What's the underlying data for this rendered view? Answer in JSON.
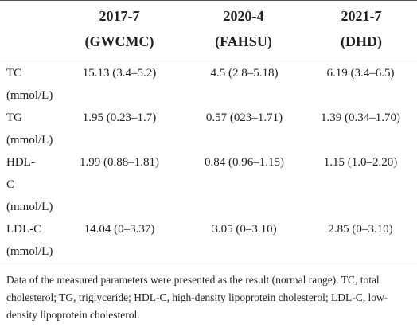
{
  "table": {
    "headers": [
      {
        "line1": "2017-7",
        "line2": "(GWCMC)"
      },
      {
        "line1": "2020-4",
        "line2": "(FAHSU)"
      },
      {
        "line1": "2021-7",
        "line2": "(DHD)"
      }
    ],
    "rows": [
      {
        "label_lines": [
          "TC",
          "(mmol/L)"
        ],
        "values": [
          "15.13 (3.4–5.2)",
          "4.5 (2.8–5.18)",
          "6.19 (3.4–6.5)"
        ]
      },
      {
        "label_lines": [
          "TG",
          "(mmol/L)"
        ],
        "values": [
          "1.95 (0.23–1.7)",
          "0.57 (023–1.71)",
          "1.39 (0.34–1.70)"
        ]
      },
      {
        "label_lines": [
          "HDL-",
          "C",
          "(mmol/L)"
        ],
        "values": [
          "1.99 (0.88–1.81)",
          "0.84 (0.96–1.15)",
          "1.15 (1.0–2.20)"
        ]
      },
      {
        "label_lines": [
          "LDL-C",
          "(mmol/L)"
        ],
        "values": [
          "14.04 (0–3.37)",
          "3.05 (0–3.10)",
          "2.85 (0–3.10)"
        ]
      }
    ]
  },
  "footnote": "Data of the measured parameters were presented as the result (normal range). TC, total cholesterol; TG, triglyceride; HDL-C, high-density lipoprotein cholesterol; LDL-C, low-density lipoprotein cholesterol."
}
